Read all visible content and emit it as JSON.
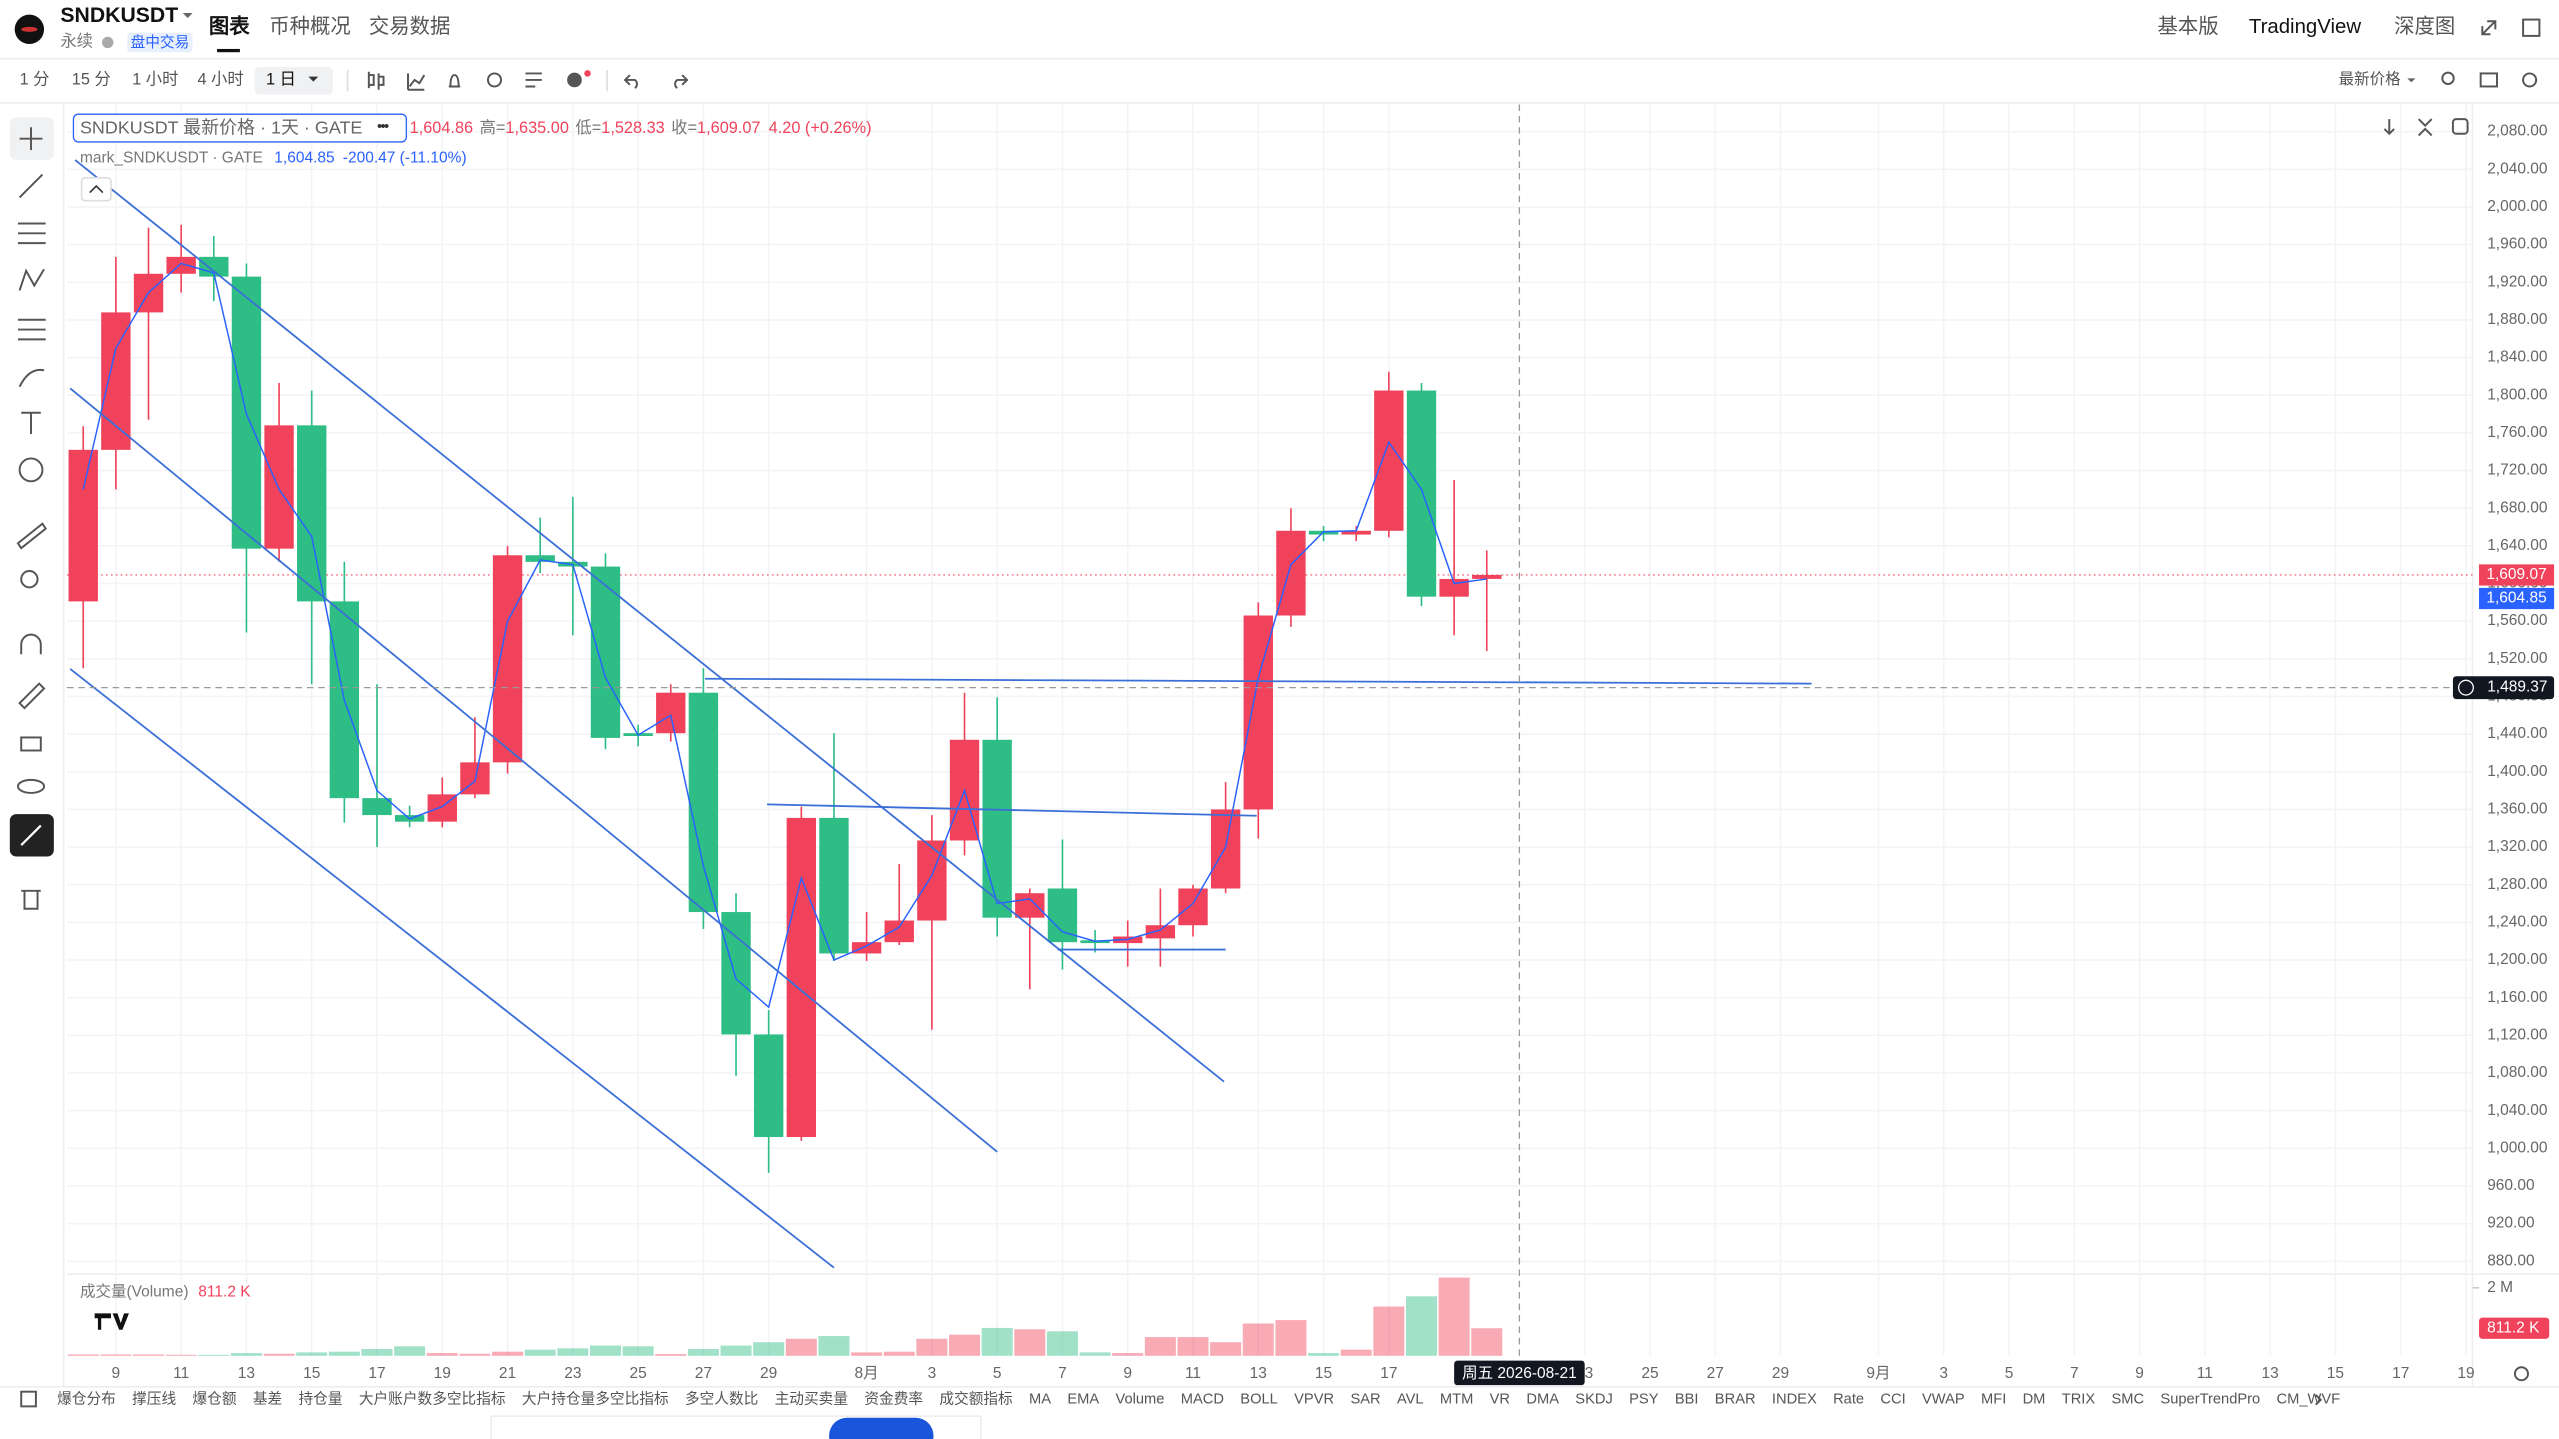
{
  "header": {
    "symbol": "SNDKUSDT",
    "contract": "永续",
    "session_tag": "盘中交易",
    "tabs": [
      "图表",
      "币种概况",
      "交易数据"
    ],
    "right_links": [
      "基本版",
      "TradingView",
      "深度图"
    ]
  },
  "toolbar": {
    "intervals": [
      "1 分",
      "15 分",
      "1 小时",
      "4 小时",
      "1 日"
    ],
    "price_source": "最新价格"
  },
  "chart_data": {
    "type": "candlestick",
    "title": "SNDKUSDT 最新价格 · 1天 · GATE",
    "legend": {
      "open": "1,604.86",
      "high_label": "高=",
      "high": "1,635.00",
      "low_label": "低=",
      "low": "1,528.33",
      "close_label": "收=",
      "close": "1,609.07",
      "change": "4.20 (+0.26%)",
      "mark_value": "1,604.85",
      "mark_change": "-200.47 (-11.10%)"
    },
    "colors": {
      "up": "#f0435b",
      "down": "#2ebd85"
    },
    "categories": [
      null,
      "9",
      null,
      "11",
      null,
      "13",
      null,
      "15",
      null,
      "17",
      null,
      "19",
      null,
      "21",
      null,
      "23",
      null,
      "25",
      null,
      "27",
      null,
      "29",
      null,
      null,
      "8月",
      null,
      "3",
      null,
      "5",
      null,
      "7",
      null,
      "9",
      null,
      "11",
      null,
      "13",
      null,
      "15",
      null,
      "17",
      null,
      null,
      null,
      null,
      null,
      "23",
      null,
      "25",
      null,
      "27",
      null,
      "29",
      null,
      null,
      "9月",
      null,
      "3",
      null,
      "5",
      null,
      "7",
      null,
      "9",
      null,
      "11",
      null,
      "13",
      null,
      "15",
      null,
      "17",
      null,
      "19"
    ],
    "open": [
      1581,
      1742,
      1888,
      1929,
      1947,
      1926,
      1637,
      1768,
      1581,
      1372,
      1354,
      1347,
      1376,
      1410,
      1630,
      1623,
      1618,
      1441,
      1441,
      1484,
      1251,
      1121,
      1012,
      1351,
      1207,
      1219,
      1242,
      1327,
      1434,
      1245,
      1276,
      1221,
      1218,
      1223,
      1237,
      1276,
      1360,
      1566,
      1656,
      1652,
      1656,
      1805,
      1586,
      1604.86,
      null,
      null,
      null,
      null,
      null,
      null,
      null,
      null,
      null,
      null,
      null,
      null,
      null,
      null,
      null,
      null,
      null,
      null,
      null,
      null,
      null,
      null,
      null,
      null,
      null,
      null,
      null,
      null,
      null,
      null
    ],
    "high": [
      1767,
      1947,
      1978,
      1981,
      1969,
      1940,
      1813,
      1805,
      1623,
      1493,
      1364,
      1394,
      1458,
      1640,
      1670,
      1692,
      1632,
      1450,
      1493,
      1510,
      1271,
      1147,
      1363,
      1441,
      1251,
      1302,
      1354,
      1484,
      1479,
      1276,
      1328,
      1232,
      1242,
      1276,
      1280,
      1389,
      1580,
      1680,
      1661,
      1661,
      1825,
      1813,
      1710,
      1635,
      null,
      null,
      null,
      null,
      null,
      null,
      null,
      null,
      null,
      null,
      null,
      null,
      null,
      null,
      null,
      null,
      null,
      null,
      null,
      null,
      null,
      null,
      null,
      null,
      null,
      null,
      null,
      null,
      null,
      null
    ],
    "low": [
      1510,
      1700,
      1774,
      1909,
      1900,
      1548,
      1623,
      1493,
      1346,
      1320,
      1341,
      1341,
      1372,
      1398,
      1611,
      1545,
      1424,
      1427,
      1432,
      1233,
      1077,
      974,
      1008,
      1199,
      1199,
      1216,
      1126,
      1311,
      1225,
      1169,
      1190,
      1208,
      1193,
      1193,
      1225,
      1271,
      1329,
      1554,
      1645,
      1645,
      1649,
      1576,
      1545,
      1528.33,
      null,
      null,
      null,
      null,
      null,
      null,
      null,
      null,
      null,
      null,
      null,
      null,
      null,
      null,
      null,
      null,
      null,
      null,
      null,
      null,
      null,
      null,
      null,
      null,
      null,
      null,
      null,
      null,
      null,
      null
    ],
    "close": [
      1742,
      1888,
      1929,
      1947,
      1926,
      1637,
      1768,
      1581,
      1372,
      1354,
      1347,
      1376,
      1410,
      1630,
      1623,
      1618,
      1436,
      1438,
      1484,
      1251,
      1121,
      1012,
      1351,
      1207,
      1219,
      1242,
      1327,
      1434,
      1245,
      1271,
      1219,
      1218,
      1225,
      1237,
      1276,
      1360,
      1566,
      1656,
      1652,
      1656,
      1805,
      1586,
      1604.86,
      1609.07,
      null,
      null,
      null,
      null,
      null,
      null,
      null,
      null,
      null,
      null,
      null,
      null,
      null,
      null,
      null,
      null,
      null,
      null,
      null,
      null,
      null,
      null,
      null,
      null,
      null,
      null,
      null,
      null,
      null,
      null
    ],
    "series": [
      {
        "name": "mark_SNDKUSDT · GATE",
        "color": "#2962ff",
        "values": [
          1700,
          1850,
          1909,
          1940,
          1930,
          1780,
          1700,
          1650,
          1476,
          1380,
          1350,
          1363,
          1390,
          1560,
          1625,
          1620,
          1500,
          1439,
          1460,
          1300,
          1180,
          1150,
          1287,
          1200,
          1215,
          1235,
          1290,
          1380,
          1260,
          1265,
          1230,
          1220,
          1222,
          1232,
          1260,
          1320,
          1500,
          1620,
          1655,
          1656,
          1750,
          1700,
          1600,
          1604.85,
          null,
          null,
          null,
          null,
          null,
          null,
          null,
          null,
          null,
          null,
          null,
          null,
          null,
          null,
          null,
          null,
          null,
          null,
          null,
          null,
          null,
          null,
          null,
          null,
          null,
          null,
          null,
          null,
          null,
          null
        ]
      }
    ],
    "ylim": [
      868,
      2102
    ],
    "yticks": [
      {
        "value": 880,
        "label": "880.00"
      },
      {
        "value": 920,
        "label": "920.00"
      },
      {
        "value": 960,
        "label": "960.00"
      },
      {
        "value": 1000,
        "label": "1,000.00"
      },
      {
        "value": 1040,
        "label": "1,040.00"
      },
      {
        "value": 1080,
        "label": "1,080.00"
      },
      {
        "value": 1120,
        "label": "1,120.00"
      },
      {
        "value": 1160,
        "label": "1,160.00"
      },
      {
        "value": 1200,
        "label": "1,200.00"
      },
      {
        "value": 1240,
        "label": "1,240.00"
      },
      {
        "value": 1280,
        "label": "1,280.00"
      },
      {
        "value": 1320,
        "label": "1,320.00"
      },
      {
        "value": 1360,
        "label": "1,360.00"
      },
      {
        "value": 1400,
        "label": "1,400.00"
      },
      {
        "value": 1440,
        "label": "1,440.00"
      },
      {
        "value": 1480,
        "label": "1,480.00"
      },
      {
        "value": 1520,
        "label": "1,520.00"
      },
      {
        "value": 1560,
        "label": "1,560.00"
      },
      {
        "value": 1600,
        "label": "1,600.00"
      },
      {
        "value": 1640,
        "label": "1,640.00"
      },
      {
        "value": 1680,
        "label": "1,680.00"
      },
      {
        "value": 1720,
        "label": "1,720.00"
      },
      {
        "value": 1760,
        "label": "1,760.00"
      },
      {
        "value": 1800,
        "label": "1,800.00"
      },
      {
        "value": 1840,
        "label": "1,840.00"
      },
      {
        "value": 1880,
        "label": "1,880.00"
      },
      {
        "value": 1920,
        "label": "1,920.00"
      },
      {
        "value": 1960,
        "label": "1,960.00"
      },
      {
        "value": 2000,
        "label": "2,000.00"
      },
      {
        "value": 2040,
        "label": "2,040.00"
      },
      {
        "value": 2080,
        "label": "2,080.00"
      }
    ],
    "grid": true,
    "last_price": {
      "value": 1609.07,
      "label": "1,609.07"
    },
    "mark_price": {
      "value": 1604.85,
      "label": "1,604.85"
    },
    "crosshair": {
      "value": 1489.37,
      "label": "1,489.37",
      "date_label": "周五 2026-08-21"
    },
    "volume": {
      "title": "成交量(Volume)",
      "values": [
        40000,
        40000,
        40000,
        30000,
        30000,
        80000,
        60000,
        100000,
        120000,
        200000,
        280000,
        80000,
        60000,
        120000,
        180000,
        220000,
        300000,
        280000,
        50000,
        200000,
        300000,
        400000,
        500000,
        580000,
        100000,
        120000,
        500000,
        620000,
        820000,
        780000,
        720000,
        100000,
        80000,
        550000,
        550000,
        400000,
        950000,
        1050000,
        80000,
        180000,
        1450000,
        1750000,
        2300000,
        811200,
        null,
        null,
        null,
        null,
        null,
        null,
        null,
        null,
        null,
        null,
        null,
        null,
        null,
        null,
        null,
        null,
        null,
        null,
        null,
        null,
        null,
        null,
        null,
        null,
        null,
        null,
        null,
        null,
        null,
        null
      ],
      "value_labels": [
        null,
        null,
        null,
        null,
        null,
        null,
        null,
        null,
        null,
        null,
        null,
        null,
        null,
        null,
        null,
        null,
        null,
        null,
        null,
        null,
        null,
        null,
        null,
        null,
        null,
        null,
        null,
        null,
        null,
        null,
        null,
        null,
        null,
        null,
        null,
        null,
        null,
        null,
        null,
        null,
        null,
        null,
        null,
        "811.2 K",
        null,
        null,
        null,
        null,
        null,
        null,
        null,
        null,
        null,
        null,
        null,
        null,
        null,
        null,
        null,
        null,
        null,
        null,
        null,
        null,
        null,
        null,
        null,
        null,
        null,
        null,
        null,
        null,
        null,
        null
      ],
      "ylim": [
        0,
        2400000
      ],
      "yticks": [
        {
          "value": 2000000,
          "label": "2 M"
        }
      ]
    }
  },
  "indicators": [
    "爆仓分布",
    "撑压线",
    "爆仓额",
    "基差",
    "持仓量",
    "大户账户数多空比指标",
    "大户持仓量多空比指标",
    "多空人数比",
    "主动买卖量",
    "资金费率",
    "成交额指标",
    "MA",
    "EMA",
    "Volume",
    "MACD",
    "BOLL",
    "VPVR",
    "SAR",
    "AVL",
    "MTM",
    "VR",
    "DMA",
    "SKDJ",
    "PSY",
    "BBI",
    "BRAR",
    "INDEX",
    "Rate",
    "CCI",
    "VWAP",
    "MFI",
    "DM",
    "TRIX",
    "SMC",
    "SuperTrendPro",
    "CM_WVF"
  ]
}
